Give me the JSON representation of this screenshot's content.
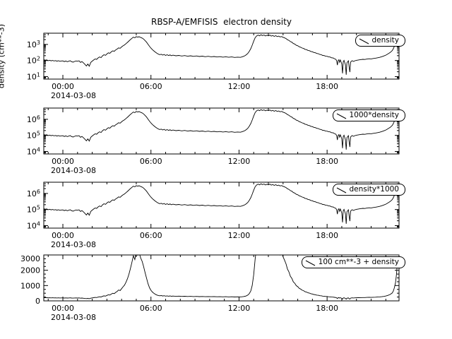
{
  "chart_data": {
    "type": "line",
    "title": "RBSP-A/EMFISIS  electron density",
    "ylabel": "density (cm**-3)",
    "date_label": "2014-03-08",
    "x_unit": "hours since 2014-03-08 00:00",
    "background": "#ffffff",
    "line_color": "#000000",
    "grid": false,
    "legend_position": "top-right",
    "xlim": [
      -1.3,
      22.9
    ],
    "xticks": [
      {
        "h": 0,
        "label": "00:00"
      },
      {
        "h": 6,
        "label": "06:00"
      },
      {
        "h": 12,
        "label": "12:00"
      },
      {
        "h": 18,
        "label": "18:00"
      }
    ],
    "panels": [
      {
        "legend": "density",
        "scale": "log",
        "factor": 1,
        "offset": 0,
        "ylim": [
          7,
          5000
        ],
        "yticks": [
          10,
          100,
          1000
        ],
        "ytick_labels": [
          "10^1",
          "10^2",
          "10^3"
        ]
      },
      {
        "legend": "1000*density",
        "scale": "log",
        "factor": 1000,
        "offset": 0,
        "ylim": [
          7000,
          5000000
        ],
        "yticks": [
          10000,
          100000,
          1000000
        ],
        "ytick_labels": [
          "10^4",
          "10^5",
          "10^6"
        ]
      },
      {
        "legend": "density*1000",
        "scale": "log",
        "factor": 1000,
        "offset": 0,
        "ylim": [
          7000,
          5000000
        ],
        "yticks": [
          10000,
          100000,
          1000000
        ],
        "ytick_labels": [
          "10^4",
          "10^5",
          "10^6"
        ]
      },
      {
        "legend": "100 cm**-3 + density",
        "scale": "linear",
        "factor": 1,
        "offset": 100,
        "ylim": [
          0,
          3000
        ],
        "yticks": [
          0,
          1000,
          2000,
          3000
        ],
        "ytick_labels": [
          "0",
          "1000",
          "2000",
          "3000"
        ],
        "yminor": 250
      }
    ],
    "points": [
      [
        -1.3,
        112
      ],
      [
        -1.2,
        105
      ],
      [
        -1.1,
        108
      ],
      [
        -1.0,
        98
      ],
      [
        -0.9,
        104
      ],
      [
        -0.8,
        96
      ],
      [
        -0.7,
        101
      ],
      [
        -0.6,
        94
      ],
      [
        -0.5,
        99
      ],
      [
        -0.4,
        91
      ],
      [
        -0.3,
        97
      ],
      [
        -0.2,
        89
      ],
      [
        -0.1,
        94
      ],
      [
        0.0,
        95
      ],
      [
        0.1,
        86
      ],
      [
        0.2,
        93
      ],
      [
        0.3,
        84
      ],
      [
        0.4,
        90
      ],
      [
        0.5,
        97
      ],
      [
        0.6,
        83
      ],
      [
        0.7,
        79
      ],
      [
        0.8,
        88
      ],
      [
        0.9,
        94
      ],
      [
        1.0,
        90
      ],
      [
        1.1,
        96
      ],
      [
        1.2,
        76
      ],
      [
        1.3,
        86
      ],
      [
        1.4,
        72
      ],
      [
        1.5,
        58
      ],
      [
        1.6,
        46
      ],
      [
        1.7,
        60
      ],
      [
        1.8,
        44
      ],
      [
        1.9,
        76
      ],
      [
        2.0,
        92
      ],
      [
        2.1,
        108
      ],
      [
        2.2,
        125
      ],
      [
        2.3,
        118
      ],
      [
        2.4,
        145
      ],
      [
        2.5,
        168
      ],
      [
        2.6,
        152
      ],
      [
        2.7,
        195
      ],
      [
        2.8,
        228
      ],
      [
        2.9,
        210
      ],
      [
        3.0,
        255
      ],
      [
        3.1,
        300
      ],
      [
        3.2,
        280
      ],
      [
        3.3,
        345
      ],
      [
        3.4,
        400
      ],
      [
        3.5,
        375
      ],
      [
        3.6,
        455
      ],
      [
        3.7,
        520
      ],
      [
        3.8,
        610
      ],
      [
        3.9,
        575
      ],
      [
        4.0,
        700
      ],
      [
        4.1,
        820
      ],
      [
        4.2,
        930
      ],
      [
        4.3,
        1120
      ],
      [
        4.4,
        1350
      ],
      [
        4.5,
        1650
      ],
      [
        4.6,
        2000
      ],
      [
        4.7,
        2400
      ],
      [
        4.8,
        2850
      ],
      [
        4.9,
        2600
      ],
      [
        5.0,
        3050
      ],
      [
        5.1,
        2880
      ],
      [
        5.2,
        3020
      ],
      [
        5.3,
        2700
      ],
      [
        5.4,
        2480
      ],
      [
        5.5,
        2150
      ],
      [
        5.6,
        1750
      ],
      [
        5.7,
        1380
      ],
      [
        5.8,
        1020
      ],
      [
        5.9,
        760
      ],
      [
        6.0,
        590
      ],
      [
        6.1,
        475
      ],
      [
        6.2,
        395
      ],
      [
        6.3,
        330
      ],
      [
        6.4,
        285
      ],
      [
        6.5,
        252
      ],
      [
        6.6,
        232
      ],
      [
        6.7,
        245
      ],
      [
        6.8,
        218
      ],
      [
        6.9,
        238
      ],
      [
        7.0,
        208
      ],
      [
        7.1,
        230
      ],
      [
        7.2,
        205
      ],
      [
        7.3,
        222
      ],
      [
        7.4,
        198
      ],
      [
        7.5,
        215
      ],
      [
        7.7,
        196
      ],
      [
        7.9,
        208
      ],
      [
        8.1,
        190
      ],
      [
        8.3,
        202
      ],
      [
        8.5,
        186
      ],
      [
        8.7,
        197
      ],
      [
        8.9,
        182
      ],
      [
        9.1,
        192
      ],
      [
        9.3,
        178
      ],
      [
        9.5,
        188
      ],
      [
        9.7,
        173
      ],
      [
        9.9,
        183
      ],
      [
        10.1,
        170
      ],
      [
        10.3,
        178
      ],
      [
        10.5,
        166
      ],
      [
        10.7,
        174
      ],
      [
        10.9,
        162
      ],
      [
        11.1,
        170
      ],
      [
        11.3,
        159
      ],
      [
        11.5,
        167
      ],
      [
        11.7,
        156
      ],
      [
        11.9,
        163
      ],
      [
        12.1,
        158
      ],
      [
        12.2,
        168
      ],
      [
        12.3,
        182
      ],
      [
        12.4,
        198
      ],
      [
        12.5,
        228
      ],
      [
        12.6,
        278
      ],
      [
        12.7,
        375
      ],
      [
        12.8,
        545
      ],
      [
        12.9,
        900
      ],
      [
        13.0,
        1600
      ],
      [
        13.1,
        2650
      ],
      [
        13.2,
        3400
      ],
      [
        13.3,
        3800
      ],
      [
        13.4,
        3450
      ],
      [
        13.5,
        3950
      ],
      [
        13.6,
        3550
      ],
      [
        13.7,
        3850
      ],
      [
        13.8,
        3380
      ],
      [
        13.9,
        3700
      ],
      [
        14.0,
        3480
      ],
      [
        14.1,
        3780
      ],
      [
        14.2,
        3300
      ],
      [
        14.3,
        3620
      ],
      [
        14.4,
        3180
      ],
      [
        14.5,
        3520
      ],
      [
        14.6,
        3080
      ],
      [
        14.7,
        3320
      ],
      [
        14.8,
        2920
      ],
      [
        14.9,
        3120
      ],
      [
        15.0,
        2780
      ],
      [
        15.1,
        2560
      ],
      [
        15.2,
        2320
      ],
      [
        15.3,
        1980
      ],
      [
        15.4,
        1790
      ],
      [
        15.5,
        1500
      ],
      [
        15.6,
        1370
      ],
      [
        15.7,
        1140
      ],
      [
        15.8,
        1050
      ],
      [
        15.9,
        890
      ],
      [
        16.0,
        830
      ],
      [
        16.1,
        715
      ],
      [
        16.2,
        672
      ],
      [
        16.3,
        598
      ],
      [
        16.4,
        565
      ],
      [
        16.5,
        495
      ],
      [
        16.6,
        475
      ],
      [
        16.7,
        425
      ],
      [
        16.8,
        408
      ],
      [
        16.9,
        365
      ],
      [
        17.0,
        350
      ],
      [
        17.1,
        315
      ],
      [
        17.2,
        303
      ],
      [
        17.3,
        276
      ],
      [
        17.4,
        266
      ],
      [
        17.5,
        238
      ],
      [
        17.6,
        232
      ],
      [
        17.7,
        208
      ],
      [
        17.8,
        203
      ],
      [
        17.9,
        186
      ],
      [
        18.0,
        184
      ],
      [
        18.1,
        168
      ],
      [
        18.2,
        165
      ],
      [
        18.3,
        149
      ],
      [
        18.4,
        146
      ],
      [
        18.5,
        130
      ],
      [
        18.6,
        118
      ],
      [
        18.65,
        95
      ],
      [
        18.7,
        52
      ],
      [
        18.75,
        98
      ],
      [
        18.8,
        112
      ],
      [
        18.85,
        78
      ],
      [
        18.9,
        108
      ],
      [
        19.0,
        62
      ],
      [
        19.05,
        16
      ],
      [
        19.1,
        84
      ],
      [
        19.15,
        102
      ],
      [
        19.25,
        55
      ],
      [
        19.3,
        13
      ],
      [
        19.35,
        72
      ],
      [
        19.45,
        96
      ],
      [
        19.5,
        42
      ],
      [
        19.55,
        19
      ],
      [
        19.6,
        80
      ],
      [
        19.7,
        98
      ],
      [
        19.8,
        88
      ],
      [
        19.9,
        97
      ],
      [
        20.0,
        103
      ],
      [
        20.14,
        108
      ],
      [
        20.29,
        114
      ],
      [
        20.43,
        119
      ],
      [
        20.57,
        116
      ],
      [
        20.72,
        124
      ],
      [
        20.86,
        129
      ],
      [
        21.0,
        126
      ],
      [
        21.15,
        134
      ],
      [
        21.29,
        139
      ],
      [
        21.44,
        148
      ],
      [
        21.58,
        158
      ],
      [
        21.72,
        172
      ],
      [
        21.87,
        192
      ],
      [
        22.01,
        218
      ],
      [
        22.15,
        258
      ],
      [
        22.3,
        318
      ],
      [
        22.44,
        415
      ],
      [
        22.51,
        540
      ],
      [
        22.58,
        745
      ],
      [
        22.66,
        1080
      ],
      [
        22.73,
        1680
      ],
      [
        22.8,
        2600
      ]
    ]
  }
}
